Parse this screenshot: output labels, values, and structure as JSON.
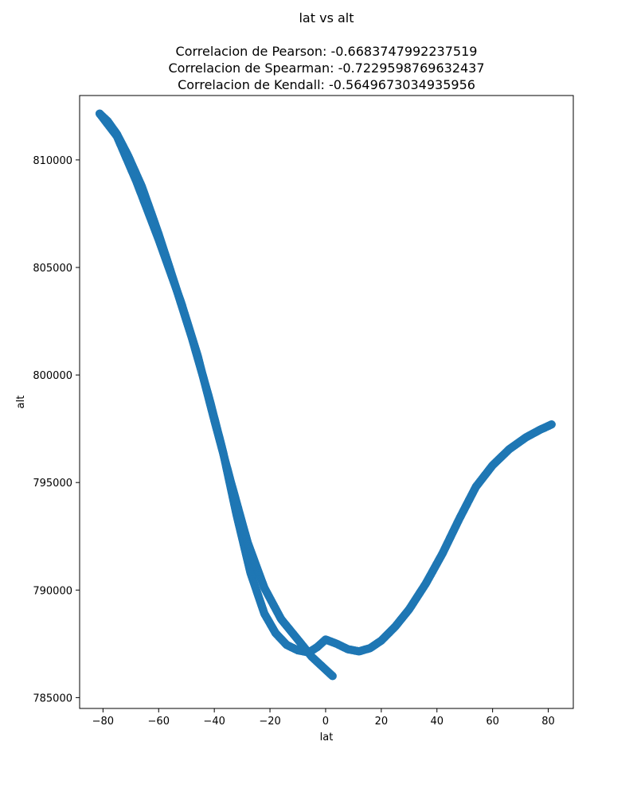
{
  "chart_data": {
    "type": "scatter",
    "title": "lat vs alt",
    "subtitle_lines": [
      "Correlacion de Pearson: -0.6683747992237519",
      "Correlacion de Spearman: -0.7229598769632437",
      "Correlacion de Kendall: -0.5649673034935956"
    ],
    "xlabel": "lat",
    "ylabel": "alt",
    "xlim": [
      -88.4,
      89.0
    ],
    "ylim": [
      784496,
      812994
    ],
    "xticks": [
      -80,
      -60,
      -40,
      -20,
      0,
      20,
      40,
      60,
      80
    ],
    "yticks": [
      785000,
      790000,
      795000,
      800000,
      805000,
      810000
    ],
    "grid": false,
    "marker_color": "#1f77b4",
    "series": [
      {
        "points": [
          [
            -81.2,
            812150
          ],
          [
            -78.3,
            811800
          ],
          [
            -75.0,
            811200
          ],
          [
            -71.0,
            810200
          ],
          [
            -66.0,
            808750
          ],
          [
            -60.0,
            806550
          ],
          [
            -54.0,
            804150
          ],
          [
            -48.0,
            801700
          ],
          [
            -42.0,
            799000
          ],
          [
            -37.0,
            796500
          ],
          [
            -32.0,
            793500
          ],
          [
            -27.0,
            790800
          ],
          [
            -22.0,
            788900
          ],
          [
            -18.0,
            788000
          ],
          [
            -14.0,
            787450
          ],
          [
            -10.0,
            787200
          ],
          [
            -6.0,
            787100
          ],
          [
            -3.0,
            787350
          ],
          [
            0.0,
            787700
          ],
          [
            4.0,
            787500
          ],
          [
            8.0,
            787250
          ],
          [
            12.0,
            787150
          ],
          [
            16.0,
            787300
          ],
          [
            20.0,
            787650
          ],
          [
            25.0,
            788300
          ],
          [
            30.0,
            789100
          ],
          [
            36.0,
            790300
          ],
          [
            42.0,
            791700
          ],
          [
            48.0,
            793300
          ],
          [
            54.0,
            794800
          ],
          [
            60.0,
            795800
          ],
          [
            66.0,
            796550
          ],
          [
            72.0,
            797100
          ],
          [
            77.0,
            797450
          ],
          [
            81.2,
            797700
          ]
        ],
        "branch_points": [
          [
            -81.2,
            812150
          ],
          [
            -75.0,
            811100
          ],
          [
            -68.0,
            809000
          ],
          [
            -60.0,
            806300
          ],
          [
            -52.0,
            803400
          ],
          [
            -46.0,
            800900
          ],
          [
            -40.0,
            797900
          ],
          [
            -34.0,
            795000
          ],
          [
            -28.0,
            792200
          ],
          [
            -22.0,
            790100
          ],
          [
            -16.0,
            788650
          ],
          [
            -10.0,
            787700
          ],
          [
            -5.0,
            786900
          ],
          [
            0.0,
            786300
          ],
          [
            2.5,
            786000
          ]
        ]
      }
    ]
  }
}
